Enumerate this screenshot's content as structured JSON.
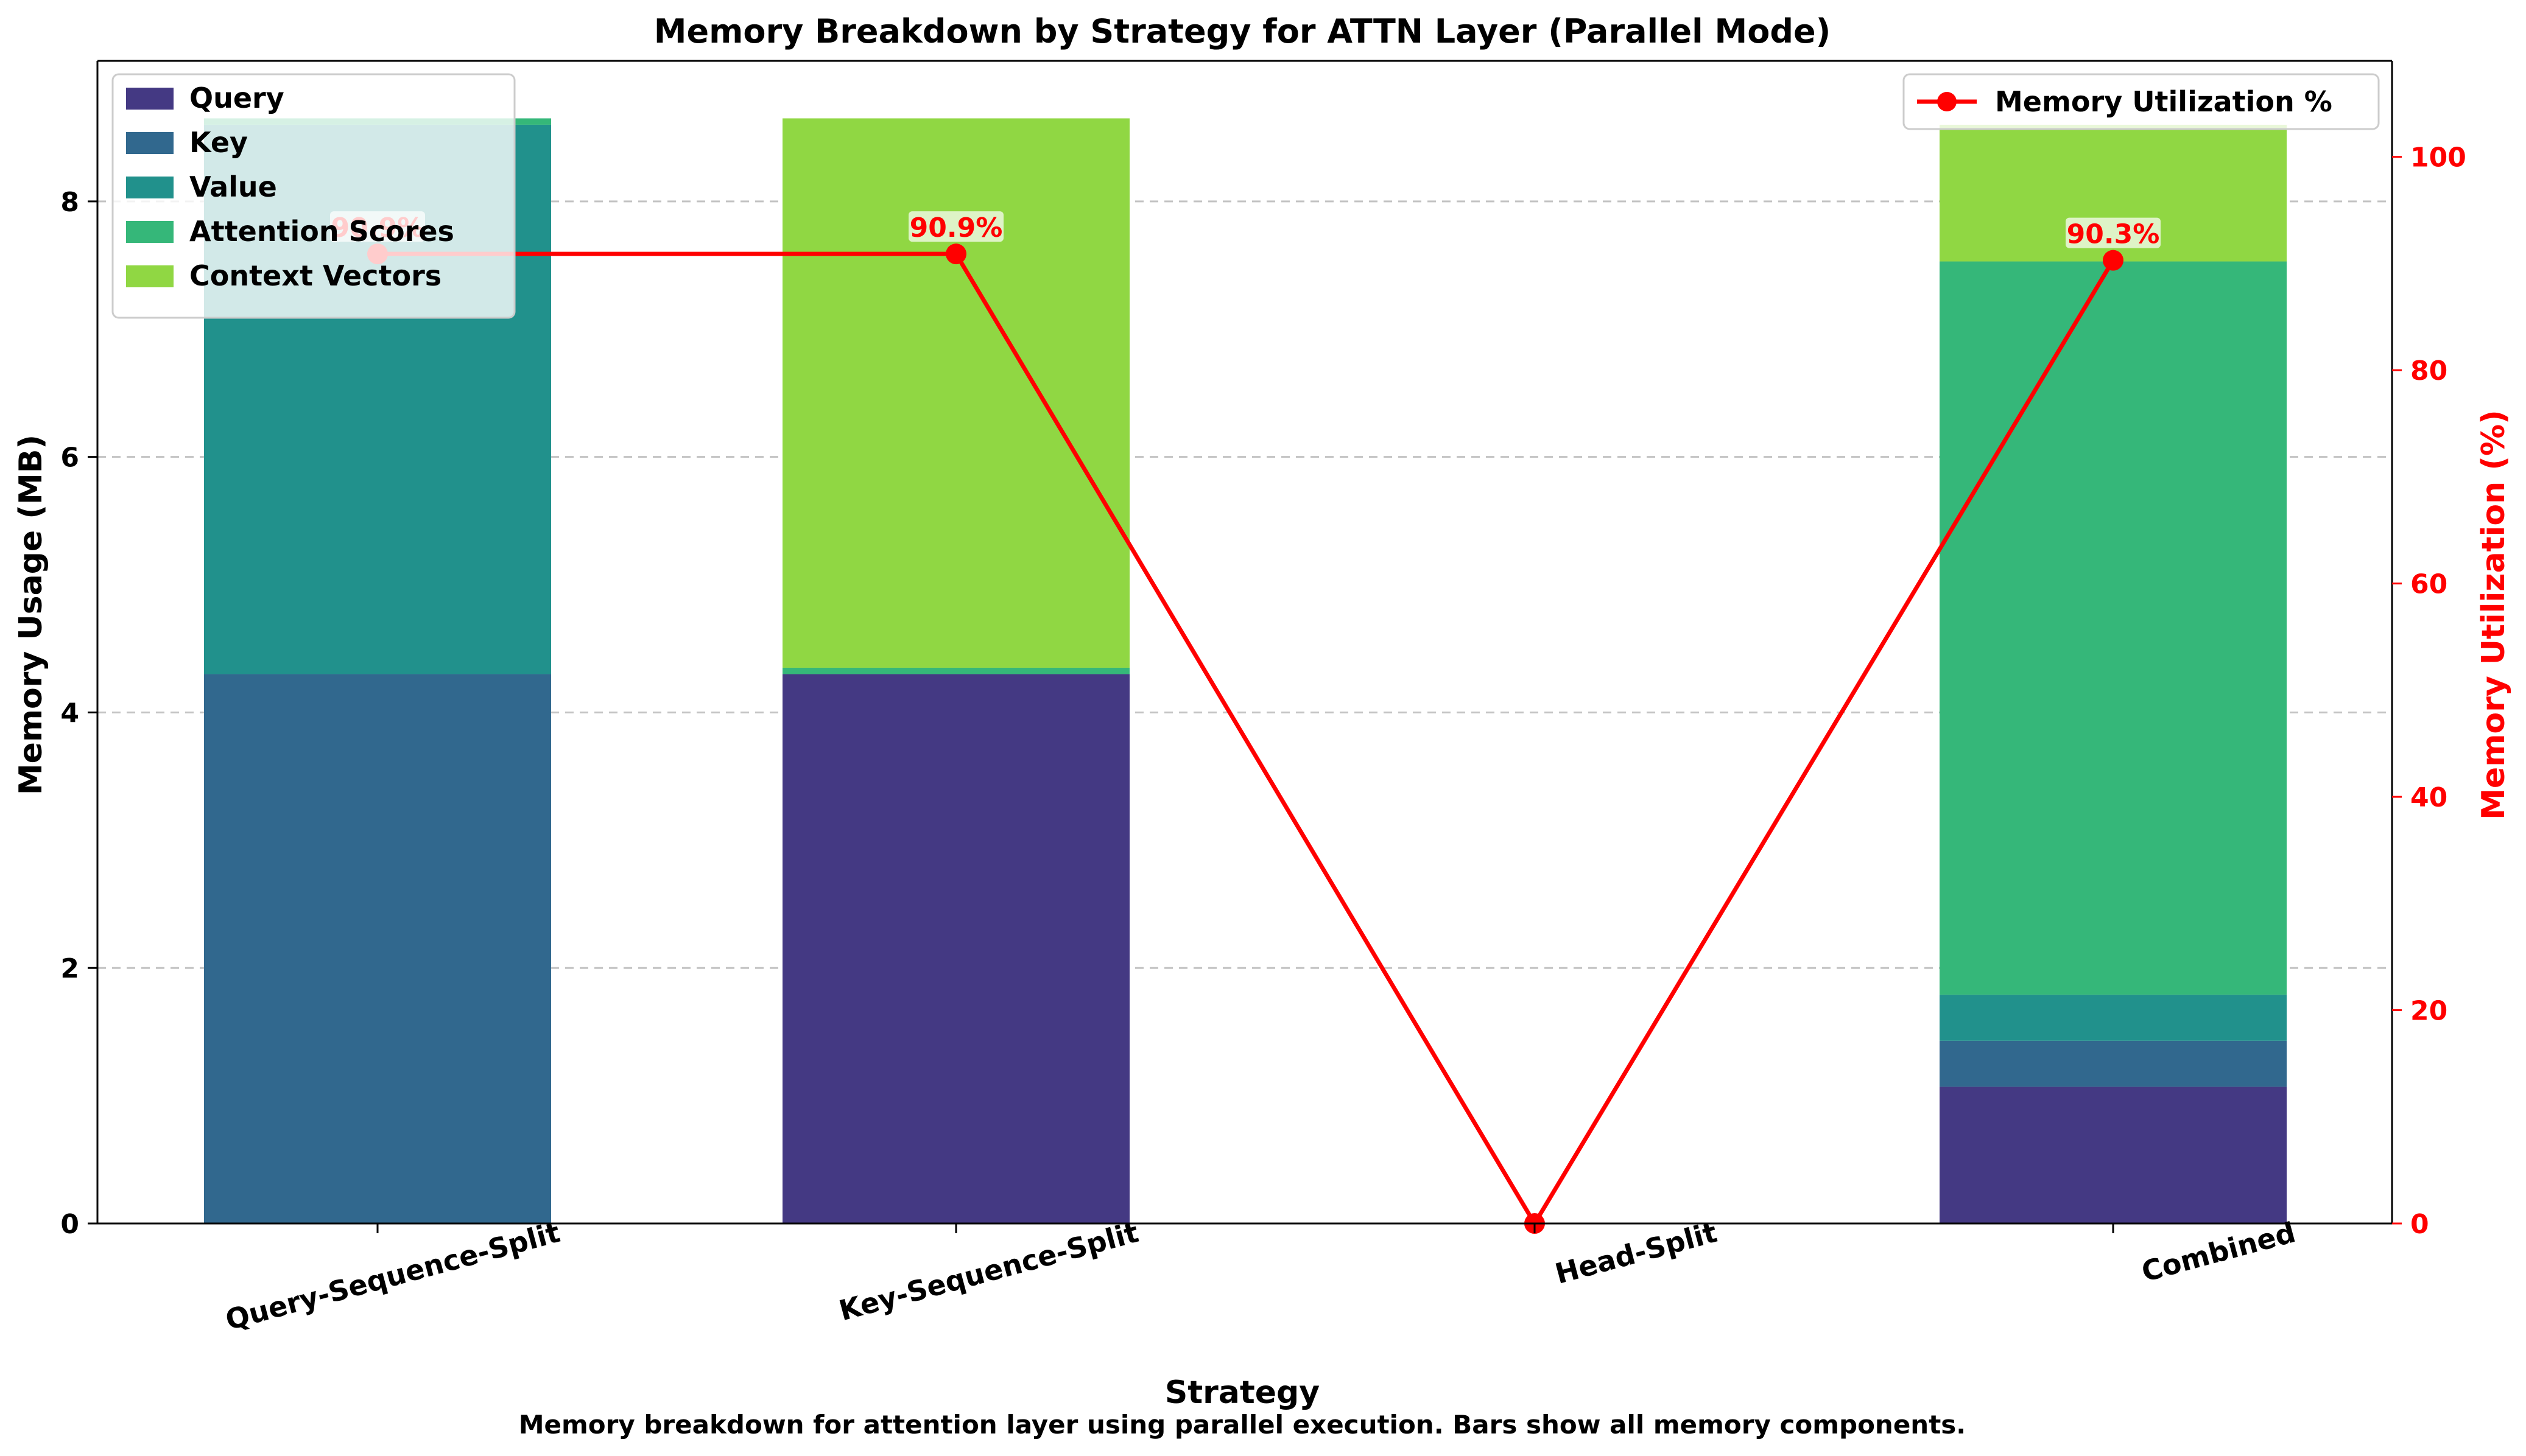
{
  "chart_data": {
    "type": "bar",
    "title": "Memory Breakdown by Strategy for ATTN Layer (Parallel Mode)",
    "caption": "Memory breakdown for attention layer using parallel execution. Bars show all memory components.",
    "xlabel": "Strategy",
    "ylabel": "Memory Usage (MB)",
    "y2label": "Memory Utilization (%)",
    "ylim": [
      0,
      9.1
    ],
    "y2lim": [
      0,
      109
    ],
    "yticks": [
      0,
      2,
      4,
      6,
      8
    ],
    "y2ticks": [
      0,
      20,
      40,
      60,
      80,
      100
    ],
    "grid": true,
    "stacked": true,
    "legend_position": "upper left",
    "legend2_position": "upper right",
    "categories": [
      "Query-Sequence-Split",
      "Key-Sequence-Split",
      "Head-Split",
      "Combined"
    ],
    "series": [
      {
        "name": "Query",
        "color": "#443983",
        "values": [
          0.0,
          4.3,
          0.0,
          1.07
        ]
      },
      {
        "name": "Key",
        "color": "#31688e",
        "values": [
          4.3,
          0.0,
          0.0,
          0.36
        ]
      },
      {
        "name": "Value",
        "color": "#21918c",
        "values": [
          4.3,
          0.0,
          0.0,
          0.36
        ]
      },
      {
        "name": "Attention Scores",
        "color": "#35b779",
        "values": [
          0.05,
          0.05,
          0.0,
          5.74
        ]
      },
      {
        "name": "Context Vectors",
        "color": "#90d743",
        "values": [
          0.0,
          4.3,
          0.0,
          1.07
        ]
      }
    ],
    "line_series": {
      "name": "Memory Utilization %",
      "color": "#ff0000",
      "axis": "right",
      "values": [
        90.9,
        90.9,
        0.0,
        90.3
      ],
      "labels": [
        "90.9%",
        "90.9%",
        "",
        "90.3%"
      ]
    }
  }
}
